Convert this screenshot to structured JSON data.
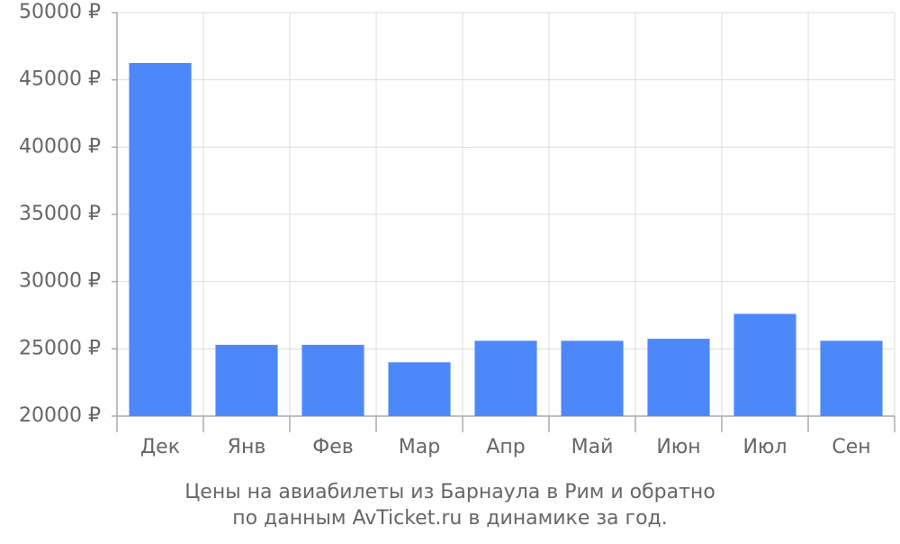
{
  "chart_data": {
    "type": "bar",
    "title": [
      "Цены на авиабилеты из Барнаула в Рим и обратно",
      "по данным AvTicket.ru в динамике за год."
    ],
    "categories": [
      "Дек",
      "Янв",
      "Фев",
      "Мар",
      "Апр",
      "Май",
      "Июн",
      "Июл",
      "Сен"
    ],
    "values": [
      46250,
      25300,
      25300,
      24000,
      25600,
      25600,
      25750,
      27600,
      25600
    ],
    "color": "#4d88fb",
    "ylim": [
      20000,
      50000
    ],
    "yticks": [
      {
        "value": 20000,
        "label": "20000 ₽"
      },
      {
        "value": 25000,
        "label": "25000 ₽"
      },
      {
        "value": 30000,
        "label": "30000 ₽"
      },
      {
        "value": 35000,
        "label": "35000 ₽"
      },
      {
        "value": 40000,
        "label": "40000 ₽"
      },
      {
        "value": 45000,
        "label": "45000 ₽"
      },
      {
        "value": 50000,
        "label": "50000 ₽"
      }
    ],
    "grid": true
  }
}
